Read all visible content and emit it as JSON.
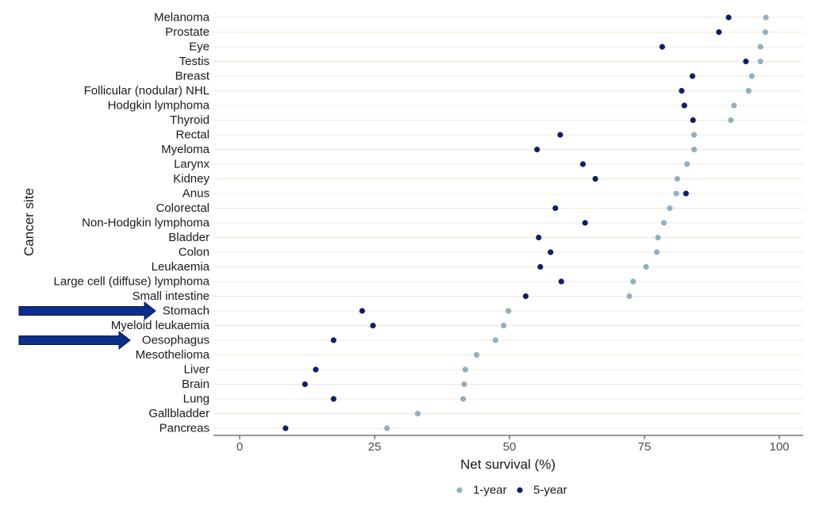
{
  "chart_data": {
    "type": "scatter",
    "orientation": "horizontal-dot-plot",
    "xlabel": "Net survival (%)",
    "ylabel": "Cancer site",
    "xlim": [
      -4.5,
      104.5
    ],
    "xticks": [
      0,
      25,
      50,
      75,
      100
    ],
    "grid": "horizontal major lines",
    "legend_position": "bottom",
    "categories": [
      "Melanoma",
      "Prostate",
      "Eye",
      "Testis",
      "Breast",
      "Follicular (nodular) NHL",
      "Hodgkin lymphoma",
      "Thyroid",
      "Rectal",
      "Myeloma",
      "Larynx",
      "Kidney",
      "Anus",
      "Colorectal",
      "Non-Hodgkin lymphoma",
      "Bladder",
      "Colon",
      "Leukaemia",
      "Large cell (diffuse) lymphoma",
      "Small intestine",
      "Stomach",
      "Myeloid leukaemia",
      "Oesophagus",
      "Mesothelioma",
      "Liver",
      "Brain",
      "Lung",
      "Gallbladder",
      "Pancreas"
    ],
    "series": [
      {
        "name": "1-year",
        "color": "#8fb1c2",
        "values": [
          97.5,
          97.4,
          96.5,
          96.5,
          94.9,
          94.3,
          91.6,
          91.0,
          84.2,
          84.2,
          82.9,
          81.1,
          80.9,
          79.7,
          78.6,
          77.5,
          77.3,
          75.3,
          72.9,
          72.2,
          49.8,
          48.9,
          47.4,
          43.9,
          41.8,
          41.6,
          41.4,
          33.0,
          27.3
        ]
      },
      {
        "name": "5-year",
        "color": "#0b1f6b",
        "values": [
          90.6,
          88.8,
          78.3,
          93.8,
          83.9,
          81.9,
          82.4,
          84.0,
          59.4,
          55.1,
          63.6,
          65.9,
          82.7,
          58.5,
          64.0,
          55.4,
          57.6,
          55.7,
          59.6,
          53.0,
          22.7,
          24.7,
          17.4,
          null,
          14.1,
          12.1,
          17.4,
          null,
          8.5
        ]
      }
    ],
    "annotations": [
      {
        "type": "arrow",
        "points_to": "Stomach",
        "color": "#0b2d8c"
      },
      {
        "type": "arrow",
        "points_to": "Oesophagus",
        "color": "#0b2d8c"
      }
    ]
  }
}
